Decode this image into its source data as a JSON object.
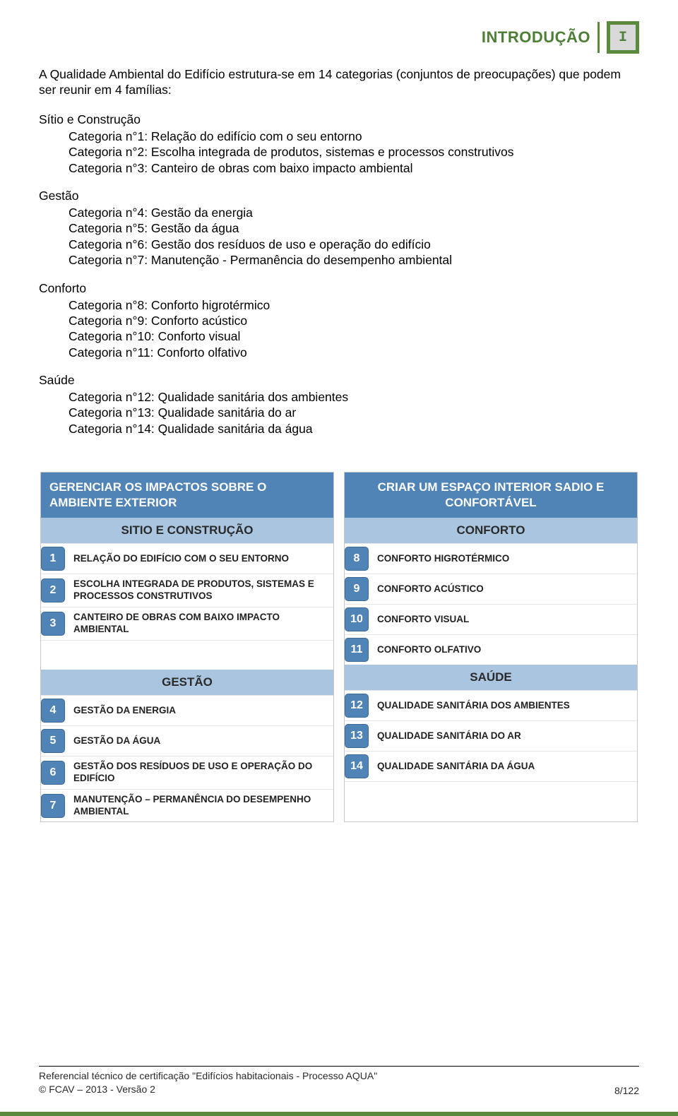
{
  "header": {
    "title": "INTRODUÇÃO",
    "badge": "I",
    "title_color": "#4d7f36",
    "badge_bg": "#5b8a3f",
    "badge_inner_bg": "#d9d9d9"
  },
  "intro": "A Qualidade Ambiental do Edifício estrutura-se em 14 categorias (conjuntos de preocupações) que podem ser reunir em 4 famílias:",
  "sections": [
    {
      "title": "Sítio e Construção",
      "items": [
        "Categoria n°1: Relação do edifício com o seu entorno",
        "Categoria n°2: Escolha integrada de produtos, sistemas e processos construtivos",
        "Categoria n°3: Canteiro de obras com baixo impacto ambiental"
      ]
    },
    {
      "title": "Gestão",
      "items": [
        "Categoria n°4: Gestão da energia",
        "Categoria n°5: Gestão da água",
        "Categoria n°6: Gestão dos resíduos de uso e operação do edifício",
        "Categoria n°7: Manutenção - Permanência do desempenho ambiental"
      ]
    },
    {
      "title": "Conforto",
      "items": [
        "Categoria n°8: Conforto higrotérmico",
        "Categoria n°9: Conforto acústico",
        "Categoria n°10: Conforto visual",
        "Categoria n°11: Conforto olfativo"
      ]
    },
    {
      "title": "Saúde",
      "no_bottom_margin": true,
      "items": [
        "Categoria n°12: Qualidade sanitária dos ambientes",
        "Categoria n°13: Qualidade sanitária do ar",
        "Categoria n°14: Qualidade sanitária da água"
      ]
    }
  ],
  "table": {
    "head_bg": "#5083b6",
    "head_fg": "#ffffff",
    "sub_bg": "#a9c5df",
    "num_bg": "#5083b6",
    "left": {
      "head": "GERENCIAR OS IMPACTOS SOBRE O AMBIENTE EXTERIOR",
      "groups": [
        {
          "sub": "SITIO E CONSTRUÇÃO",
          "rows": [
            {
              "n": "1",
              "label": "RELAÇÃO DO EDIFÍCIO COM O SEU ENTORNO"
            },
            {
              "n": "2",
              "label": "ESCOLHA INTEGRADA DE PRODUTOS, SISTEMAS E PROCESSOS CONSTRUTIVOS"
            },
            {
              "n": "3",
              "label": "CANTEIRO DE OBRAS COM BAIXO IMPACTO AMBIENTAL"
            }
          ],
          "trailing_spacers": 1
        },
        {
          "sub": "GESTÃO",
          "rows": [
            {
              "n": "4",
              "label": "GESTÃO DA ENERGIA"
            },
            {
              "n": "5",
              "label": "GESTÃO DA ÁGUA"
            },
            {
              "n": "6",
              "label": "GESTÃO DOS RESÍDUOS DE USO E OPERAÇÃO DO EDIFÍCIO"
            },
            {
              "n": "7",
              "label": "MANUTENÇÃO – PERMANÊNCIA DO DESEMPENHO AMBIENTAL"
            }
          ],
          "trailing_spacers": 0
        }
      ]
    },
    "right": {
      "head": "CRIAR UM ESPAÇO INTERIOR SADIO E CONFORTÁVEL",
      "groups": [
        {
          "sub": "CONFORTO",
          "rows": [
            {
              "n": "8",
              "label": "CONFORTO HIGROTÉRMICO"
            },
            {
              "n": "9",
              "label": "CONFORTO ACÚSTICO"
            },
            {
              "n": "10",
              "label": "CONFORTO VISUAL"
            },
            {
              "n": "11",
              "label": "CONFORTO OLFATIVO"
            }
          ],
          "trailing_spacers": 0
        },
        {
          "sub": "SAÚDE",
          "rows": [
            {
              "n": "12",
              "label": "QUALIDADE SANITÁRIA DOS AMBIENTES"
            },
            {
              "n": "13",
              "label": "QUALIDADE SANITÁRIA DO AR"
            },
            {
              "n": "14",
              "label": "QUALIDADE SANITÁRIA DA ÁGUA"
            }
          ],
          "trailing_spacers": 1
        }
      ]
    }
  },
  "footer": {
    "line1": "Referencial técnico de certificação \"Edifícios habitacionais - Processo AQUA\"",
    "line2": "© FCAV – 2013 - Versão 2",
    "page": "8/122"
  }
}
